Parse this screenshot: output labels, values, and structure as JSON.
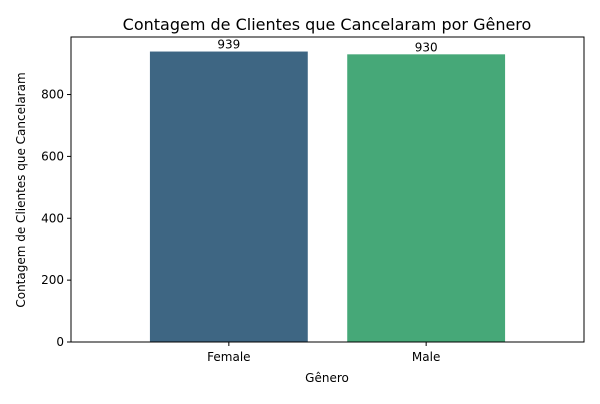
{
  "chart_data": {
    "type": "bar",
    "title": "Contagem de Clientes que Cancelaram por Gênero",
    "xlabel": "Gênero",
    "ylabel": "Contagem de Clientes que Cancelaram",
    "categories": [
      "Female",
      "Male"
    ],
    "values": [
      939,
      930
    ],
    "data_labels": [
      "939",
      "930"
    ],
    "colors": [
      "#3e6683",
      "#46a878"
    ],
    "ylim": [
      0,
      986
    ],
    "yticks": [
      0,
      200,
      400,
      600,
      800
    ],
    "grid": false,
    "legend": "none"
  }
}
